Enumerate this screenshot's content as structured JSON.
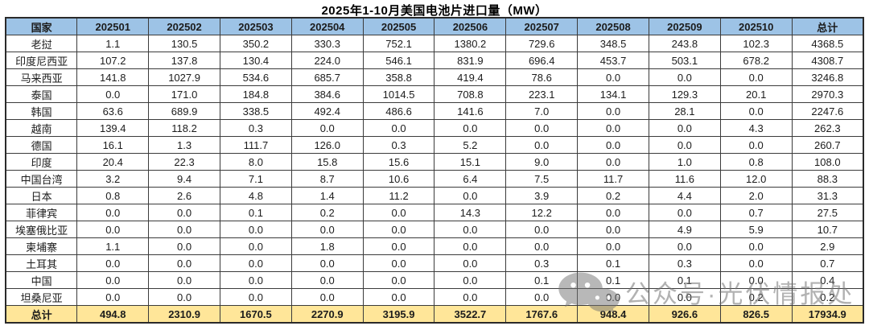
{
  "page": {
    "title": "2025年1-10月美国电池片进口量（MW）"
  },
  "table": {
    "columns": [
      "国家",
      "202501",
      "202502",
      "202503",
      "202504",
      "202505",
      "202506",
      "202507",
      "202508",
      "202509",
      "202510",
      "总计"
    ],
    "rows": [
      {
        "country": "老挝",
        "values": [
          "1.1",
          "130.5",
          "350.2",
          "330.3",
          "752.1",
          "1380.2",
          "729.6",
          "348.5",
          "243.8",
          "102.3",
          "4368.5"
        ]
      },
      {
        "country": "印度尼西亚",
        "values": [
          "107.2",
          "137.8",
          "130.4",
          "224.0",
          "546.1",
          "831.9",
          "696.4",
          "453.7",
          "503.1",
          "678.2",
          "4308.7"
        ]
      },
      {
        "country": "马来西亚",
        "values": [
          "141.8",
          "1027.9",
          "534.6",
          "685.7",
          "358.8",
          "419.4",
          "78.6",
          "0.0",
          "0.0",
          "0.0",
          "3246.8"
        ]
      },
      {
        "country": "泰国",
        "values": [
          "0.0",
          "171.0",
          "184.8",
          "384.6",
          "1014.5",
          "708.8",
          "223.1",
          "134.1",
          "129.3",
          "20.1",
          "2970.3"
        ]
      },
      {
        "country": "韩国",
        "values": [
          "63.6",
          "689.9",
          "338.5",
          "492.4",
          "486.6",
          "141.6",
          "7.0",
          "0.0",
          "28.1",
          "0.0",
          "2247.6"
        ]
      },
      {
        "country": "越南",
        "values": [
          "139.4",
          "118.2",
          "0.3",
          "0.0",
          "0.0",
          "0.0",
          "0.0",
          "0.0",
          "0.0",
          "4.3",
          "262.3"
        ]
      },
      {
        "country": "德国",
        "values": [
          "16.1",
          "1.3",
          "111.7",
          "126.0",
          "0.3",
          "5.2",
          "0.0",
          "0.0",
          "0.0",
          "0.0",
          "260.7"
        ]
      },
      {
        "country": "印度",
        "values": [
          "20.4",
          "22.3",
          "8.0",
          "15.8",
          "15.6",
          "15.1",
          "9.0",
          "0.0",
          "1.0",
          "0.8",
          "108.0"
        ]
      },
      {
        "country": "中国台湾",
        "values": [
          "3.2",
          "9.4",
          "7.1",
          "8.7",
          "10.6",
          "6.4",
          "7.5",
          "11.7",
          "11.6",
          "12.0",
          "88.3"
        ]
      },
      {
        "country": "日本",
        "values": [
          "0.8",
          "2.6",
          "4.8",
          "1.4",
          "11.2",
          "0.0",
          "3.9",
          "0.2",
          "4.4",
          "2.0",
          "31.3"
        ]
      },
      {
        "country": "菲律宾",
        "values": [
          "0.0",
          "0.0",
          "0.1",
          "0.2",
          "0.0",
          "14.3",
          "12.2",
          "0.0",
          "0.0",
          "0.7",
          "27.5"
        ]
      },
      {
        "country": "埃塞俄比亚",
        "values": [
          "0.0",
          "0.0",
          "0.0",
          "0.0",
          "0.0",
          "0.0",
          "0.0",
          "0.0",
          "4.9",
          "5.9",
          "10.7"
        ]
      },
      {
        "country": "柬埔寨",
        "values": [
          "1.1",
          "0.0",
          "0.0",
          "1.8",
          "0.0",
          "0.0",
          "0.0",
          "0.0",
          "0.0",
          "0.0",
          "2.9"
        ]
      },
      {
        "country": "土耳其",
        "values": [
          "0.0",
          "0.0",
          "0.0",
          "0.0",
          "0.0",
          "0.0",
          "0.3",
          "0.1",
          "0.3",
          "0.0",
          "0.7"
        ]
      },
      {
        "country": "中国",
        "values": [
          "0.0",
          "0.0",
          "0.0",
          "0.0",
          "0.0",
          "0.0",
          "0.1",
          "0.1",
          "0.1",
          "0.0",
          "0.4"
        ]
      },
      {
        "country": "坦桑尼亚",
        "values": [
          "0.0",
          "0.0",
          "0.0",
          "0.0",
          "0.0",
          "0.0",
          "0.0",
          "0.0",
          "0.0",
          "0.2",
          "0.2"
        ]
      }
    ],
    "total_row": {
      "label": "总计",
      "values": [
        "494.8",
        "2310.9",
        "1670.5",
        "2270.9",
        "3195.9",
        "3522.7",
        "1767.6",
        "948.4",
        "926.6",
        "826.5",
        "17934.9"
      ]
    }
  },
  "watermark": {
    "icon": "wechat-icon",
    "text": "公众号·光伏情报处"
  },
  "colors": {
    "header_bg": "#9DC3E6",
    "total_bg": "#FFE699",
    "border": "#3b3b3b",
    "watermark_gray": "#737373"
  }
}
